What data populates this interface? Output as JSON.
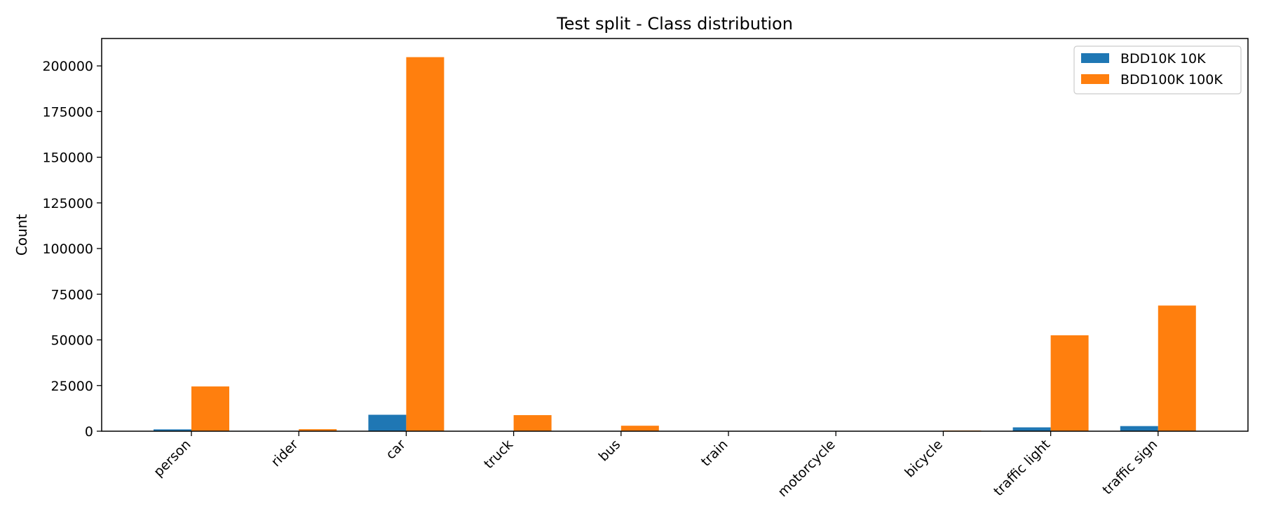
{
  "chart_data": {
    "type": "bar",
    "title": "Test split - Class distribution",
    "xlabel": "",
    "ylabel": "Count",
    "categories": [
      "person",
      "rider",
      "car",
      "truck",
      "bus",
      "train",
      "motorcycle",
      "bicycle",
      "traffic light",
      "traffic sign"
    ],
    "series": [
      {
        "name": "BDD10K 10K",
        "color": "#1f77b4",
        "values": [
          1000,
          100,
          9000,
          200,
          100,
          10,
          30,
          60,
          2100,
          2800
        ]
      },
      {
        "name": "BDD100K 100K",
        "color": "#ff7f0e",
        "values": [
          24500,
          1100,
          204800,
          8800,
          3000,
          100,
          200,
          400,
          52500,
          68800
        ]
      }
    ],
    "ylim": [
      0,
      215000
    ],
    "yticks": [
      0,
      25000,
      50000,
      75000,
      100000,
      125000,
      150000,
      175000,
      200000
    ],
    "grid": false,
    "legend_position": "top-right"
  }
}
